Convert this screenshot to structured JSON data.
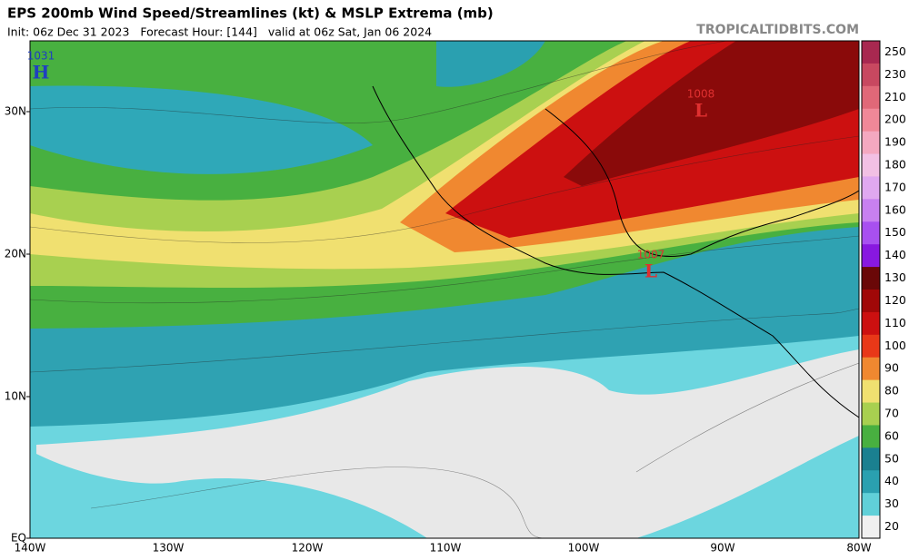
{
  "header": {
    "title": "EPS 200mb Wind Speed/Streamlines (kt) & MSLP Extrema (mb)",
    "subtitle": "Init: 06z Dec 31 2023   Forecast Hour: [144]   valid at 06z Sat, Jan 06 2024",
    "site": "TROPICALTIDBITS.COM"
  },
  "map": {
    "lat_labels": [
      "30N",
      "20N",
      "10N",
      "EQ"
    ],
    "lon_labels": [
      "140W",
      "130W",
      "120W",
      "110W",
      "100W",
      "90W",
      "80W"
    ],
    "centers": [
      {
        "pressure": 1031,
        "symbol": "H",
        "color": "#1f3fc0"
      },
      {
        "pressure": 1008,
        "symbol": "L",
        "color": "#e03030"
      },
      {
        "pressure": 1007,
        "symbol": "L",
        "color": "#e03030"
      }
    ]
  },
  "colorbar": {
    "ticks": [
      250,
      230,
      210,
      200,
      190,
      180,
      170,
      160,
      150,
      140,
      130,
      120,
      110,
      100,
      90,
      80,
      70,
      60,
      50,
      40,
      30,
      20
    ],
    "colors": [
      "#a82850",
      "#c84860",
      "#e06878",
      "#f08898",
      "#f4a8c0",
      "#f2c0e4",
      "#e0a8f0",
      "#c880f0",
      "#a850f0",
      "#8818e0",
      "#6a0808",
      "#a00808",
      "#cc1010",
      "#e83818",
      "#f08830",
      "#f0e070",
      "#a8d050",
      "#48b040",
      "#1a8090",
      "#2aa0b0",
      "#60d0d8",
      "#f0f0f0"
    ]
  }
}
